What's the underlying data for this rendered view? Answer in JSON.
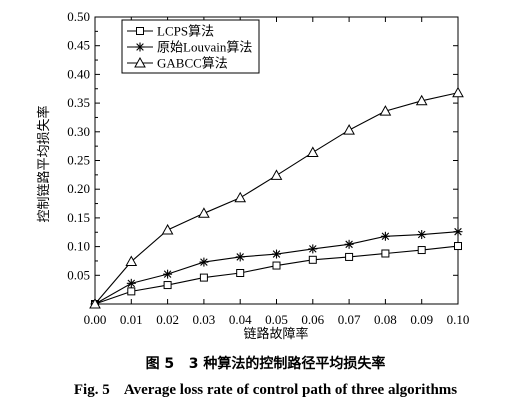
{
  "chart_data": {
    "type": "line",
    "xlabel": "链路故障率",
    "ylabel": "控制链路平均损失率",
    "x": [
      0.0,
      0.01,
      0.02,
      0.03,
      0.04,
      0.05,
      0.06,
      0.07,
      0.08,
      0.09,
      0.1
    ],
    "xticks": [
      "0.00",
      "0.01",
      "0.02",
      "0.03",
      "0.04",
      "0.05",
      "0.06",
      "0.07",
      "0.08",
      "0.09",
      "0.10"
    ],
    "yticks": [
      "0",
      "0.05",
      "0.10",
      "0.15",
      "0.20",
      "0.25",
      "0.30",
      "0.35",
      "0.40",
      "0.45",
      "0.50"
    ],
    "xlim": [
      0,
      0.1
    ],
    "ylim": [
      0,
      0.5
    ],
    "legend_position": "top-left",
    "series": [
      {
        "name": "LCPS算法",
        "marker": "square",
        "values": [
          0.0,
          0.022,
          0.033,
          0.046,
          0.054,
          0.067,
          0.077,
          0.082,
          0.088,
          0.094,
          0.101
        ]
      },
      {
        "name": "原始Louvain算法",
        "marker": "asterisk",
        "values": [
          0.0,
          0.036,
          0.052,
          0.073,
          0.082,
          0.087,
          0.096,
          0.104,
          0.118,
          0.121,
          0.126
        ]
      },
      {
        "name": "GABCC算法",
        "marker": "triangle",
        "values": [
          0.0,
          0.074,
          0.129,
          0.158,
          0.185,
          0.224,
          0.264,
          0.303,
          0.336,
          0.354,
          0.368
        ]
      }
    ]
  },
  "caption": {
    "cn": "图 5   3 种算法的控制路径平均损失率",
    "en": "Fig. 5    Average loss rate of control path of three algorithms"
  }
}
